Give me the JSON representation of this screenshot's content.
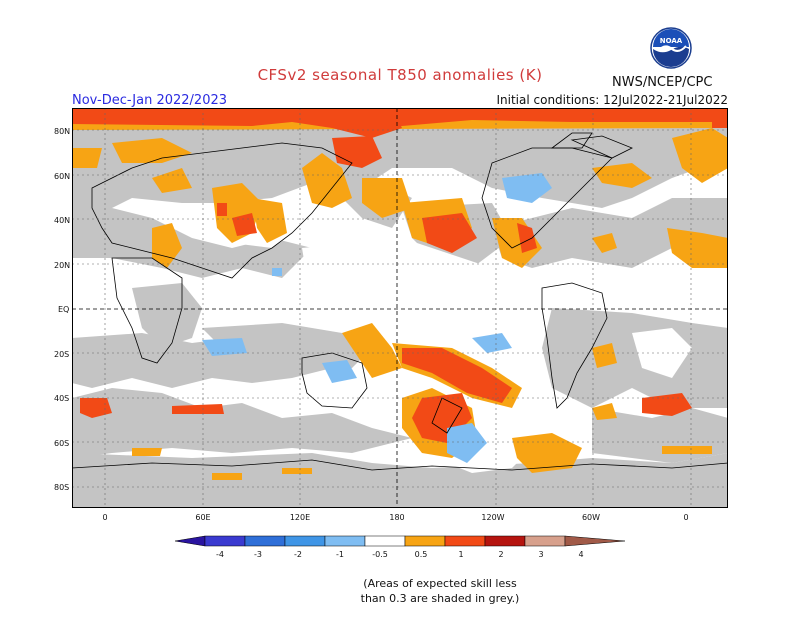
{
  "header": {
    "title": "CFSv2 seasonal T850 anomalies (K)",
    "season": "Nov-Dec-Jan 2022/2023",
    "initial_conditions": "Initial conditions: 12Jul2022-21Jul2022",
    "agency": "NWS/NCEP/CPC",
    "logo_text": "NOAA"
  },
  "map": {
    "projection": "equirectangular",
    "lat_labels": [
      "80N",
      "60N",
      "40N",
      "20N",
      "EQ",
      "20S",
      "40S",
      "60S",
      "80S"
    ],
    "lon_labels": [
      "0",
      "60E",
      "120E",
      "180",
      "120W",
      "60W",
      "0"
    ],
    "grid": "dotted"
  },
  "legend": {
    "labels": [
      "-4",
      "-3",
      "-2",
      "-1",
      "-0.5",
      "0.5",
      "1",
      "2",
      "3",
      "4"
    ],
    "colors": {
      "lt_minus4": "#2a14a0",
      "m4_m3": "#3a3ad0",
      "m3_m2": "#2f6fd8",
      "m2_m1": "#3f95e6",
      "m1_m05": "#7fbdf2",
      "neutral": "#ffffff",
      "p05_p1": "#f7a414",
      "p1_p2": "#f24a16",
      "p2_p3": "#b5140f",
      "p3_p4": "#d7a08c",
      "gt_p4": "#a15a48"
    }
  },
  "colors": {
    "grey_low_skill": "#c4c4c4",
    "orange": "#f7a414",
    "red": "#f24a16",
    "lightblue": "#7fbdf2"
  },
  "note": {
    "line1": "(Areas of expected skill less",
    "line2": "than 0.3 are shaded in grey.)"
  }
}
